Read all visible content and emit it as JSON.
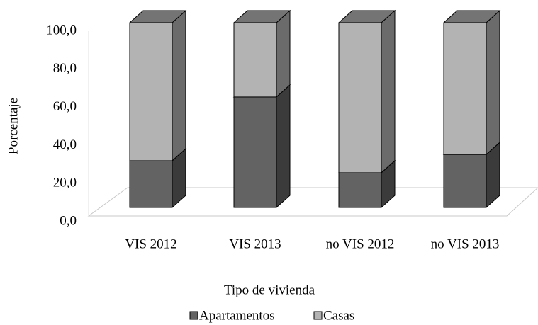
{
  "chart_data": {
    "type": "bar3d_stacked",
    "x_label": "Tipo de vivienda",
    "y_label": "Porcentaje",
    "categories": [
      "VIS 2012",
      "VIS 2013",
      "no VIS 2012",
      "no VIS 2013"
    ],
    "series": [
      {
        "name": "Apartamentos",
        "color": "#636363",
        "values": [
          25.3,
          59.8,
          18.8,
          28.7
        ]
      },
      {
        "name": "Casas",
        "color": "#b3b3b3",
        "values": [
          74.7,
          40.2,
          81.2,
          71.3
        ]
      }
    ],
    "ylim": [
      0,
      100
    ],
    "yticks": [
      {
        "value": 0,
        "label": "0,0"
      },
      {
        "value": 20,
        "label": "20,0"
      },
      {
        "value": 40,
        "label": "40,0"
      },
      {
        "value": 60,
        "label": "60,0"
      },
      {
        "value": 80,
        "label": "80,0"
      },
      {
        "value": 100,
        "label": "100,0"
      }
    ],
    "legend": "bottom"
  }
}
